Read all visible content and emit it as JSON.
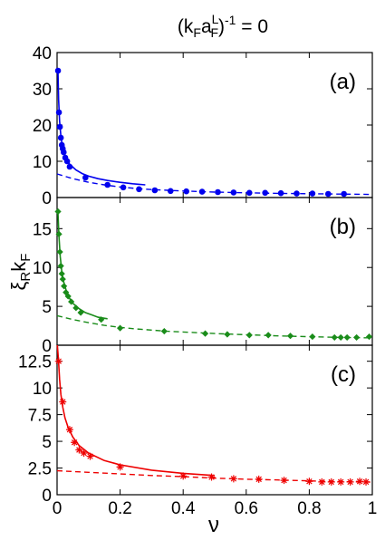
{
  "title": {
    "prefix": "(k",
    "k_sub": "F",
    "a": "a",
    "a_sup": "L",
    "a_sub": "F",
    "close": ")",
    "exp": "-1",
    "rhs": " = 0"
  },
  "ylabel": {
    "xi": "ξ",
    "xi_sub": "R",
    "k": "k",
    "k_sub": "F"
  },
  "xlabel": "ν",
  "x_ticks": [
    "0",
    "0.2",
    "0.4",
    "0.6",
    "0.8",
    "1"
  ],
  "chart_data": [
    {
      "type": "scatter",
      "panel_label": "(a)",
      "color": "#0000ee",
      "marker": "circle",
      "xlim": [
        0,
        1
      ],
      "ylim": [
        0,
        40
      ],
      "yticks": [
        0,
        10,
        20,
        30,
        40
      ],
      "points": {
        "x": [
          0.003,
          0.006,
          0.009,
          0.012,
          0.015,
          0.018,
          0.021,
          0.026,
          0.032,
          0.04,
          0.09,
          0.16,
          0.21,
          0.26,
          0.31,
          0.36,
          0.41,
          0.46,
          0.51,
          0.56,
          0.61,
          0.66,
          0.71,
          0.76,
          0.81,
          0.86,
          0.91
        ],
        "y": [
          35.0,
          23.5,
          19.5,
          16.5,
          14.5,
          13.5,
          12.5,
          11.0,
          10.0,
          8.5,
          5.5,
          3.5,
          2.8,
          2.3,
          2.0,
          1.8,
          1.7,
          1.6,
          1.5,
          1.4,
          1.3,
          1.3,
          1.2,
          1.1,
          1.1,
          1.0,
          1.0
        ]
      },
      "solid_fit": {
        "x": [
          0.003,
          0.005,
          0.008,
          0.012,
          0.016,
          0.02,
          0.03,
          0.04,
          0.06,
          0.08,
          0.1,
          0.13,
          0.16,
          0.2,
          0.24,
          0.28
        ],
        "y": [
          35.0,
          27.0,
          21.0,
          17.0,
          14.5,
          13.0,
          10.5,
          9.2,
          7.6,
          6.6,
          5.9,
          5.2,
          4.7,
          4.2,
          3.8,
          3.5
        ]
      },
      "dashed_fit": {
        "x": [
          0,
          0.05,
          0.1,
          0.15,
          0.2,
          0.25,
          0.3,
          0.35,
          0.4,
          0.5,
          0.6,
          0.7,
          0.8,
          0.9,
          1.0
        ],
        "y": [
          6.5,
          5.2,
          4.2,
          3.5,
          2.9,
          2.5,
          2.2,
          2.0,
          1.8,
          1.5,
          1.3,
          1.15,
          1.05,
          0.95,
          0.85
        ]
      }
    },
    {
      "type": "scatter",
      "panel_label": "(b)",
      "color": "#1a8c1a",
      "marker": "diamond",
      "xlim": [
        0,
        1
      ],
      "ylim": [
        0,
        19
      ],
      "yticks": [
        0,
        5,
        10,
        15
      ],
      "points": {
        "x": [
          0.003,
          0.006,
          0.009,
          0.012,
          0.015,
          0.018,
          0.022,
          0.028,
          0.035,
          0.045,
          0.06,
          0.075,
          0.14,
          0.2,
          0.34,
          0.47,
          0.54,
          0.61,
          0.67,
          0.74,
          0.81,
          0.88,
          0.9,
          0.92,
          0.95,
          0.99
        ],
        "y": [
          17.2,
          14.3,
          12.0,
          10.2,
          9.2,
          8.5,
          7.6,
          6.8,
          6.3,
          5.6,
          4.8,
          4.2,
          3.3,
          2.2,
          1.8,
          1.5,
          1.4,
          1.3,
          1.3,
          1.2,
          1.1,
          1.0,
          1.0,
          1.0,
          1.0,
          1.1
        ]
      },
      "solid_fit": {
        "x": [
          0.003,
          0.006,
          0.01,
          0.015,
          0.02,
          0.03,
          0.04,
          0.05,
          0.07,
          0.09,
          0.11,
          0.13,
          0.16
        ],
        "y": [
          17.0,
          14.0,
          11.4,
          9.5,
          8.3,
          6.9,
          6.0,
          5.4,
          4.7,
          4.2,
          3.9,
          3.6,
          3.4
        ]
      },
      "dashed_fit": {
        "x": [
          0,
          0.05,
          0.1,
          0.15,
          0.2,
          0.25,
          0.3,
          0.35,
          0.4,
          0.5,
          0.6,
          0.7,
          0.8,
          0.9,
          1.0
        ],
        "y": [
          3.8,
          3.3,
          2.9,
          2.55,
          2.3,
          2.1,
          1.95,
          1.8,
          1.7,
          1.5,
          1.35,
          1.2,
          1.1,
          1.0,
          0.95
        ]
      }
    },
    {
      "type": "scatter",
      "panel_label": "(c)",
      "color": "#ee0000",
      "marker": "asterisk",
      "xlim": [
        0,
        1
      ],
      "ylim": [
        0,
        14
      ],
      "yticks": [
        0,
        2.5,
        5,
        7.5,
        10,
        12.5
      ],
      "ytick_labels": [
        "0",
        "2.5",
        "5",
        "7.5",
        "10",
        "12.5"
      ],
      "points": {
        "x": [
          0.005,
          0.018,
          0.04,
          0.055,
          0.07,
          0.085,
          0.105,
          0.2,
          0.4,
          0.49,
          0.56,
          0.64,
          0.72,
          0.8,
          0.84,
          0.87,
          0.9,
          0.93,
          0.96,
          0.98
        ],
        "y": [
          12.5,
          8.7,
          6.1,
          4.9,
          4.2,
          3.9,
          3.6,
          2.6,
          1.75,
          1.65,
          1.5,
          1.45,
          1.35,
          1.25,
          1.2,
          1.2,
          1.2,
          1.2,
          1.25,
          1.2
        ]
      },
      "solid_fit": {
        "x": [
          0.001,
          0.004,
          0.008,
          0.012,
          0.018,
          0.025,
          0.035,
          0.05,
          0.07,
          0.1,
          0.15,
          0.2,
          0.3,
          0.4,
          0.5
        ],
        "y": [
          14.0,
          12.8,
          10.8,
          9.4,
          8.2,
          7.2,
          6.3,
          5.4,
          4.6,
          3.9,
          3.2,
          2.8,
          2.3,
          2.0,
          1.8
        ]
      },
      "dashed_fit": {
        "x": [
          0,
          0.1,
          0.2,
          0.3,
          0.4,
          0.5,
          0.6,
          0.7,
          0.8,
          0.9,
          1.0
        ],
        "y": [
          2.25,
          2.1,
          1.95,
          1.8,
          1.7,
          1.55,
          1.45,
          1.38,
          1.3,
          1.22,
          1.18
        ]
      }
    }
  ]
}
